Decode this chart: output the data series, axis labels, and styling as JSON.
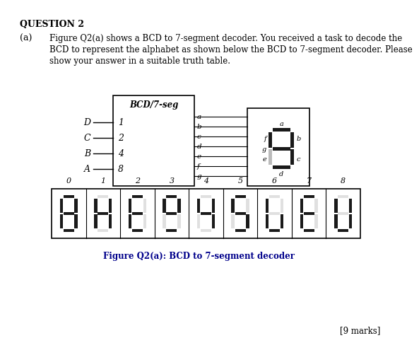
{
  "title": "QUESTION 2",
  "question_label": "(a)",
  "question_text_line1": "Figure Q2(a) shows a BCD to 7-segment decoder. You received a task to decode the",
  "question_text_line2": "BCD to represent the alphabet as shown below the BCD to 7-segment decoder. Please",
  "question_text_line3": "show your answer in a suitable truth table.",
  "box_title": "BCD/7-seg",
  "inputs": [
    "D",
    "C",
    "B",
    "A"
  ],
  "input_weights": [
    "1",
    "2",
    "4",
    "8"
  ],
  "outputs": [
    "a",
    "b",
    "c",
    "d",
    "e",
    "f",
    "g"
  ],
  "digit_labels": [
    "0",
    "1",
    "2",
    "3",
    "4",
    "5",
    "6",
    "7",
    "8"
  ],
  "caption": "Figure Q2(a): BCD to 7-segment decoder",
  "marks": "[9 marks]",
  "segments_on": [
    [
      1,
      1,
      1,
      1,
      1,
      1,
      1
    ],
    [
      0,
      1,
      1,
      0,
      1,
      1,
      1
    ],
    [
      1,
      0,
      0,
      1,
      1,
      1,
      1
    ],
    [
      1,
      1,
      0,
      1,
      0,
      1,
      1
    ],
    [
      0,
      1,
      1,
      0,
      0,
      1,
      1
    ],
    [
      1,
      0,
      1,
      1,
      0,
      1,
      1
    ],
    [
      0,
      0,
      1,
      1,
      1,
      1,
      0
    ],
    [
      1,
      0,
      0,
      1,
      1,
      1,
      1
    ],
    [
      0,
      1,
      1,
      1,
      1,
      1,
      0
    ]
  ],
  "seg_color_on": "#1a1a1a",
  "seg_color_off": "#e0e0e0",
  "bg_color": "#ffffff"
}
